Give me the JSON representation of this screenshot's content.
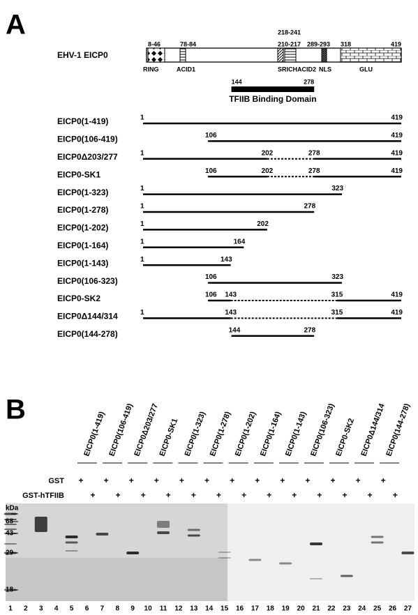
{
  "panel_a": {
    "label": "A",
    "protein": "EHV-1 EICP0",
    "domains": [
      {
        "range": "8-46",
        "name": "RING"
      },
      {
        "range": "78-84",
        "name": "ACID1"
      },
      {
        "range": "210-217",
        "name": "SRICH"
      },
      {
        "range": "218-241",
        "name": "ACID2"
      },
      {
        "range": "289-293",
        "name": "NLS"
      },
      {
        "range": "318",
        "name": "GLU"
      }
    ],
    "protein_end": "419",
    "binding_domain": {
      "label": "TFIIB Binding Domain",
      "start": 144,
      "end": 278
    },
    "constructs": [
      {
        "name": "EICP0(1-419)",
        "residues": [
          1,
          419
        ]
      },
      {
        "name": "EICP0(106-419)",
        "residues": [
          106,
          419
        ]
      },
      {
        "name": "EICP0Δ203/277",
        "residues": [
          1,
          202,
          278,
          419
        ]
      },
      {
        "name": "EICP0-SK1",
        "residues": [
          106,
          202,
          278,
          419
        ]
      },
      {
        "name": "EICP0(1-323)",
        "residues": [
          1,
          323
        ]
      },
      {
        "name": "EICP0(1-278)",
        "residues": [
          1,
          278
        ]
      },
      {
        "name": "EICP0(1-202)",
        "residues": [
          1,
          202
        ]
      },
      {
        "name": "EICP0(1-164)",
        "residues": [
          1,
          164
        ]
      },
      {
        "name": "EICP0(1-143)",
        "residues": [
          1,
          143
        ]
      },
      {
        "name": "EICP0(106-323)",
        "residues": [
          106,
          323
        ]
      },
      {
        "name": "EICP0-SK2",
        "residues": [
          106,
          143,
          315,
          419
        ]
      },
      {
        "name": "EICP0Δ144/314",
        "residues": [
          1,
          143,
          315,
          419
        ]
      },
      {
        "name": "EICP0(144-278)",
        "residues": [
          144,
          278
        ]
      }
    ]
  },
  "panel_b": {
    "label": "B",
    "lane_headers": [
      "EICP0(1-419)",
      "EICP0(106-419)",
      "EICP0Δ203/277",
      "EICP0-SK1",
      "EICP0(1-323)",
      "EICP0(1-278)",
      "EICP0(1-202)",
      "EICP0(1-164)",
      "EICP0(1-143)",
      "EICP0(106-323)",
      "EICP0-SK2",
      "EICP0Δ144/314",
      "EICP0(144-278)"
    ],
    "rows": [
      {
        "label": "GST",
        "marks": [
          "+",
          "+",
          "+",
          "+",
          "+",
          "+",
          "+",
          "+",
          "+",
          "+",
          "+",
          "+",
          "+"
        ]
      },
      {
        "label": "GST-hTFIIB",
        "marks": [
          "+",
          "+",
          "+",
          "+",
          "+",
          "+",
          "+",
          "+",
          "+",
          "+",
          "+",
          "+",
          "+"
        ]
      }
    ],
    "unit": "kDa",
    "markers": [
      "68",
      "43",
      "29",
      "18"
    ],
    "lane_numbers": [
      1,
      2,
      3,
      4,
      5,
      6,
      7,
      8,
      9,
      10,
      11,
      12,
      13,
      14,
      15,
      16,
      17,
      18,
      19,
      20,
      21,
      22,
      23,
      24,
      25,
      26,
      27
    ]
  }
}
